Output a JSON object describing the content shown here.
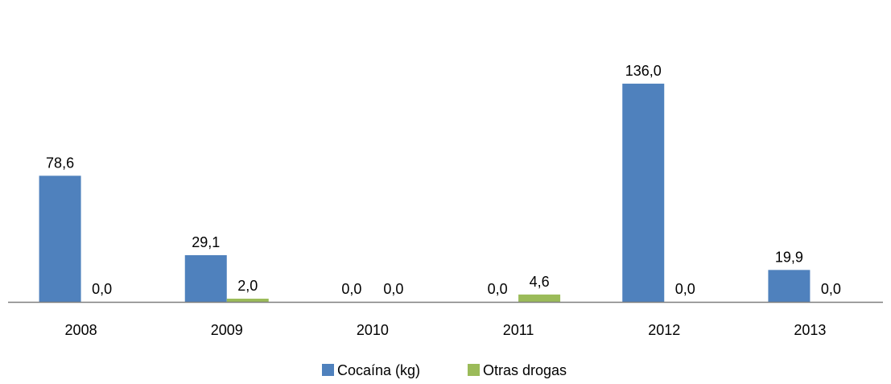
{
  "chart_data": {
    "type": "bar",
    "title": "",
    "xlabel": "",
    "ylabel": "",
    "categories": [
      "2008",
      "2009",
      "2010",
      "2011",
      "2012",
      "2013"
    ],
    "series": [
      {
        "name": "Cocaína (kg)",
        "color": "#4F81BD",
        "values": [
          78.6,
          29.1,
          0.0,
          0.0,
          136.0,
          19.9
        ],
        "labels": [
          "78,6",
          "29,1",
          "0,0",
          "0,0",
          "136,0",
          "19,9"
        ]
      },
      {
        "name": "Otras drogas",
        "color": "#9BBB59",
        "values": [
          0.0,
          2.0,
          0.0,
          4.6,
          0.0,
          0.0
        ],
        "labels": [
          "0,0",
          "2,0",
          "0,0",
          "4,6",
          "0,0",
          "0,0"
        ]
      }
    ],
    "ylim": [
      0,
      150
    ],
    "grid": false,
    "legend_position": "bottom",
    "axis_color": "#7F7F7F"
  }
}
